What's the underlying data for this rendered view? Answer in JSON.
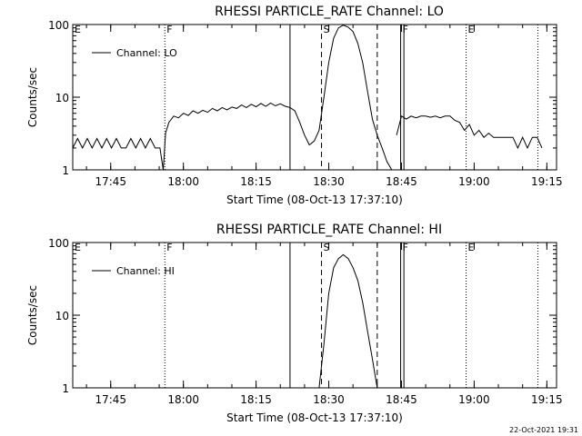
{
  "footer_date": "22-Oct-2021 19:31",
  "chart_data": [
    {
      "type": "line",
      "title": "RHESSI PARTICLE_RATE Channel: LO",
      "xlabel": "Start Time (08-Oct-13 17:37:10)",
      "ylabel": "Counts/sec",
      "yscale": "log",
      "ylim": [
        1,
        100
      ],
      "xlim": [
        "17:37:10",
        "19:17:00"
      ],
      "yticks": [
        "1",
        "10",
        "100"
      ],
      "xticks": [
        "17:45",
        "18:00",
        "18:15",
        "18:30",
        "18:45",
        "19:00",
        "19:15"
      ],
      "legend": {
        "position": "top-left",
        "entries": [
          "Channel: LO"
        ]
      },
      "markers": [
        {
          "label": "E",
          "time": "17:37:10",
          "style": "none"
        },
        {
          "label": "F",
          "time": "17:56:10",
          "style": "dotted"
        },
        {
          "label": "",
          "time": "18:22:00",
          "style": "solid"
        },
        {
          "label": "S",
          "time": "18:28:30",
          "style": "dashed"
        },
        {
          "label": "",
          "time": "18:40:00",
          "style": "dashed"
        },
        {
          "label": "F",
          "time": "18:44:50",
          "style": "solid"
        },
        {
          "label": "",
          "time": "18:45:30",
          "style": "solid"
        },
        {
          "label": "E",
          "time": "18:58:20",
          "style": "dotted"
        },
        {
          "label": "",
          "time": "19:13:10",
          "style": "dotted"
        }
      ],
      "series": [
        {
          "name": "Channel: LO",
          "segments": [
            [
              [
                "17:37:10",
                2
              ],
              [
                "17:38:10",
                2.7
              ],
              [
                "17:39:10",
                2
              ],
              [
                "17:40:10",
                2.7
              ],
              [
                "17:41:10",
                2
              ],
              [
                "17:42:10",
                2.7
              ],
              [
                "17:43:10",
                2
              ],
              [
                "17:44:10",
                2.7
              ],
              [
                "17:45:10",
                2
              ],
              [
                "17:46:10",
                2.7
              ],
              [
                "17:47:10",
                2
              ],
              [
                "17:48:10",
                2
              ],
              [
                "17:49:10",
                2.7
              ],
              [
                "17:50:10",
                2
              ],
              [
                "17:51:10",
                2.7
              ],
              [
                "17:52:10",
                2
              ],
              [
                "17:53:10",
                2.7
              ],
              [
                "17:54:10",
                2
              ],
              [
                "17:55:10",
                2
              ],
              [
                "17:55:50",
                1
              ],
              [
                "17:56:20",
                3.2
              ],
              [
                "17:57:00",
                4.5
              ],
              [
                "17:58:00",
                5.5
              ],
              [
                "17:59:00",
                5.2
              ],
              [
                "18:00:00",
                6
              ],
              [
                "18:01:00",
                5.6
              ],
              [
                "18:02:00",
                6.5
              ],
              [
                "18:03:00",
                6
              ],
              [
                "18:04:00",
                6.6
              ],
              [
                "18:05:00",
                6.2
              ],
              [
                "18:06:00",
                7
              ],
              [
                "18:07:00",
                6.5
              ],
              [
                "18:08:00",
                7.2
              ],
              [
                "18:09:00",
                6.7
              ],
              [
                "18:10:00",
                7.3
              ],
              [
                "18:11:00",
                7
              ],
              [
                "18:12:00",
                7.8
              ],
              [
                "18:13:00",
                7.2
              ],
              [
                "18:14:00",
                8
              ],
              [
                "18:15:00",
                7.4
              ],
              [
                "18:16:00",
                8.2
              ],
              [
                "18:17:00",
                7.5
              ],
              [
                "18:18:00",
                8.3
              ],
              [
                "18:19:00",
                7.6
              ],
              [
                "18:20:00",
                8.1
              ],
              [
                "18:21:00",
                7.5
              ],
              [
                "18:22:00",
                7.2
              ],
              [
                "18:23:00",
                6.5
              ],
              [
                "18:24:00",
                4.5
              ],
              [
                "18:25:00",
                3
              ],
              [
                "18:26:00",
                2.2
              ],
              [
                "18:27:00",
                2.5
              ],
              [
                "18:28:00",
                3.5
              ],
              [
                "18:29:00",
                10
              ],
              [
                "18:30:00",
                30
              ],
              [
                "18:31:00",
                65
              ],
              [
                "18:32:00",
                90
              ],
              [
                "18:33:00",
                98
              ],
              [
                "18:34:00",
                92
              ],
              [
                "18:35:00",
                80
              ],
              [
                "18:36:00",
                55
              ],
              [
                "18:37:00",
                30
              ],
              [
                "18:38:00",
                12
              ],
              [
                "18:39:00",
                5
              ],
              [
                "18:40:00",
                3
              ],
              [
                "18:41:00",
                2
              ],
              [
                "18:42:00",
                1.3
              ],
              [
                "18:43:00",
                1
              ]
            ],
            [
              [
                "18:44:00",
                3
              ],
              [
                "18:45:00",
                5.5
              ],
              [
                "18:46:00",
                5
              ],
              [
                "18:47:00",
                5.5
              ],
              [
                "18:48:00",
                5.2
              ],
              [
                "18:49:00",
                5.5
              ],
              [
                "18:50:00",
                5.5
              ],
              [
                "18:51:00",
                5.3
              ],
              [
                "18:52:00",
                5.5
              ],
              [
                "18:53:00",
                5.2
              ],
              [
                "18:54:00",
                5.5
              ],
              [
                "18:55:00",
                5.5
              ],
              [
                "18:56:00",
                4.8
              ],
              [
                "18:57:00",
                4.5
              ],
              [
                "18:58:00",
                3.5
              ],
              [
                "18:59:00",
                4.2
              ],
              [
                "19:00:00",
                3
              ],
              [
                "19:01:00",
                3.5
              ],
              [
                "19:02:00",
                2.8
              ],
              [
                "19:03:00",
                3.2
              ],
              [
                "19:04:00",
                2.8
              ],
              [
                "19:05:00",
                2.8
              ],
              [
                "19:06:00",
                2.8
              ],
              [
                "19:07:00",
                2.8
              ],
              [
                "19:08:00",
                2.8
              ],
              [
                "19:09:00",
                2
              ],
              [
                "19:10:00",
                2.8
              ],
              [
                "19:11:00",
                2
              ],
              [
                "19:12:00",
                2.8
              ],
              [
                "19:13:00",
                2.8
              ],
              [
                "19:14:00",
                2
              ]
            ]
          ]
        }
      ]
    },
    {
      "type": "line",
      "title": "RHESSI PARTICLE_RATE Channel: HI",
      "xlabel": "Start Time (08-Oct-13 17:37:10)",
      "ylabel": "Counts/sec",
      "yscale": "log",
      "ylim": [
        1,
        100
      ],
      "xlim": [
        "17:37:10",
        "19:17:00"
      ],
      "yticks": [
        "1",
        "10",
        "100"
      ],
      "xticks": [
        "17:45",
        "18:00",
        "18:15",
        "18:30",
        "18:45",
        "19:00",
        "19:15"
      ],
      "legend": {
        "position": "top-left",
        "entries": [
          "Channel: HI"
        ]
      },
      "markers": [
        {
          "label": "E",
          "time": "17:37:10",
          "style": "none"
        },
        {
          "label": "F",
          "time": "17:56:10",
          "style": "dotted"
        },
        {
          "label": "",
          "time": "18:22:00",
          "style": "solid"
        },
        {
          "label": "S",
          "time": "18:28:30",
          "style": "dashed"
        },
        {
          "label": "",
          "time": "18:40:00",
          "style": "dashed"
        },
        {
          "label": "F",
          "time": "18:44:50",
          "style": "solid"
        },
        {
          "label": "",
          "time": "18:45:30",
          "style": "solid"
        },
        {
          "label": "E",
          "time": "18:58:20",
          "style": "dotted"
        },
        {
          "label": "",
          "time": "19:13:10",
          "style": "dotted"
        }
      ],
      "series": [
        {
          "name": "Channel: HI",
          "segments": [
            [
              [
                "18:28:00",
                1
              ],
              [
                "18:29:00",
                4
              ],
              [
                "18:30:00",
                20
              ],
              [
                "18:31:00",
                45
              ],
              [
                "18:32:00",
                60
              ],
              [
                "18:33:00",
                68
              ],
              [
                "18:34:00",
                60
              ],
              [
                "18:35:00",
                45
              ],
              [
                "18:36:00",
                30
              ],
              [
                "18:37:00",
                15
              ],
              [
                "18:38:00",
                6
              ],
              [
                "18:39:00",
                2.5
              ],
              [
                "18:40:00",
                1
              ]
            ]
          ]
        }
      ]
    }
  ]
}
